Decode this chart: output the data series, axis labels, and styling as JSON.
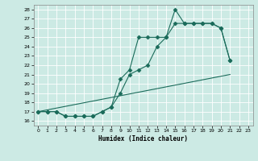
{
  "xlabel": "Humidex (Indice chaleur)",
  "bg_color": "#cceae4",
  "line_color": "#1a6b5a",
  "grid_color": "#aad4cc",
  "xlim": [
    -0.5,
    23.5
  ],
  "ylim": [
    15.5,
    28.5
  ],
  "yticks": [
    16,
    17,
    18,
    19,
    20,
    21,
    22,
    23,
    24,
    25,
    26,
    27,
    28
  ],
  "xticks": [
    0,
    1,
    2,
    3,
    4,
    5,
    6,
    7,
    8,
    9,
    10,
    11,
    12,
    13,
    14,
    15,
    16,
    17,
    18,
    19,
    20,
    21,
    22,
    23
  ],
  "line1_x": [
    0,
    1,
    2,
    3,
    4,
    5,
    6,
    7,
    8,
    9,
    10,
    11,
    12,
    13,
    14,
    15,
    16,
    17,
    18,
    19,
    20,
    21
  ],
  "line1_y": [
    17.0,
    17.0,
    17.0,
    16.5,
    16.5,
    16.5,
    16.5,
    17.0,
    17.5,
    19.0,
    21.0,
    21.5,
    22.0,
    24.0,
    25.0,
    28.0,
    26.5,
    26.5,
    26.5,
    26.5,
    26.0,
    22.5
  ],
  "line2_x": [
    0,
    1,
    2,
    3,
    4,
    5,
    6,
    7,
    8,
    9,
    10,
    11,
    12,
    13,
    14,
    15,
    16,
    17,
    18,
    19,
    20,
    21
  ],
  "line2_y": [
    17.0,
    17.0,
    17.0,
    16.5,
    16.5,
    16.5,
    16.5,
    17.0,
    17.5,
    20.5,
    21.5,
    25.0,
    25.0,
    25.0,
    25.0,
    26.5,
    26.5,
    26.5,
    26.5,
    26.5,
    26.0,
    22.5
  ],
  "line3_x": [
    0,
    21
  ],
  "line3_y": [
    17.0,
    21.0
  ]
}
